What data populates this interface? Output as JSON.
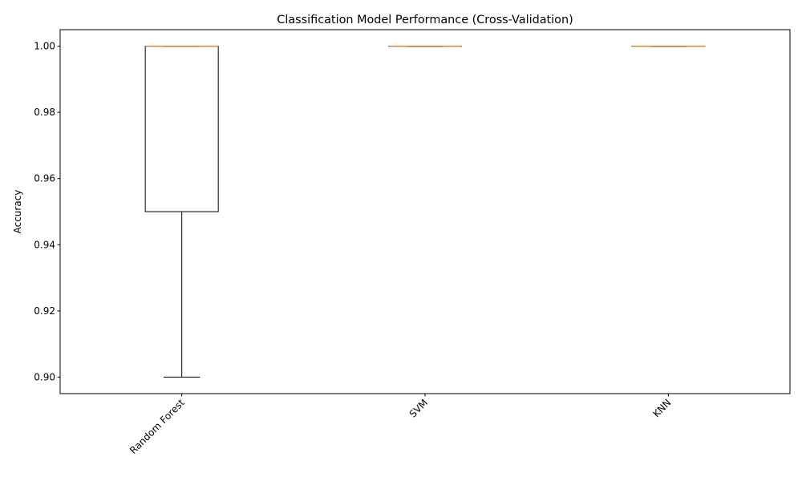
{
  "chart_data": {
    "type": "box",
    "title": "Classification Model Performance (Cross-Validation)",
    "xlabel": "",
    "ylabel": "Accuracy",
    "ylim": [
      0.895,
      1.005
    ],
    "yticks": [
      0.9,
      0.92,
      0.94,
      0.96,
      0.98,
      1.0
    ],
    "ytick_labels": [
      "0.90",
      "0.92",
      "0.94",
      "0.96",
      "0.98",
      "1.00"
    ],
    "categories": [
      "Random Forest",
      "SVM",
      "KNN"
    ],
    "xtick_rotation_deg": 45,
    "boxes": [
      {
        "category": "Random Forest",
        "whisker_low": 0.9,
        "q1": 0.95,
        "median": 1.0,
        "q3": 1.0,
        "whisker_high": 1.0
      },
      {
        "category": "SVM",
        "whisker_low": 1.0,
        "q1": 1.0,
        "median": 1.0,
        "q3": 1.0,
        "whisker_high": 1.0
      },
      {
        "category": "KNN",
        "whisker_low": 1.0,
        "q1": 1.0,
        "median": 1.0,
        "q3": 1.0,
        "whisker_high": 1.0
      }
    ],
    "colors": {
      "box": "#000000",
      "median": "#ff7f0e"
    },
    "grid": false,
    "legend": "none"
  }
}
